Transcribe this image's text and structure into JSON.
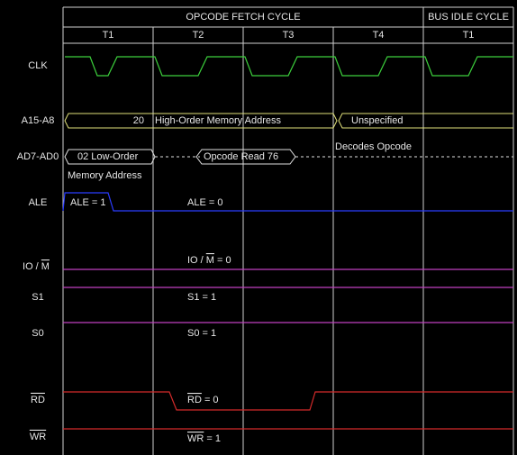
{
  "header": {
    "cycles": [
      "OPCODE FETCH CYCLE",
      "BUS IDLE CYCLE"
    ],
    "states": [
      "T1",
      "T2",
      "T3",
      "T4",
      "T1"
    ]
  },
  "signals": [
    {
      "label": "CLK"
    },
    {
      "label": "A15-A8"
    },
    {
      "label": "AD7-AD0"
    },
    {
      "label": "ALE"
    },
    {
      "label": "IO / ",
      "overline": "M"
    },
    {
      "label": "S1"
    },
    {
      "label": "S0"
    },
    {
      "overline": "RD"
    },
    {
      "overline": "WR"
    }
  ],
  "annotations": {
    "address_high_value": "20",
    "address_high_text": "High-Order Memory Address",
    "address_high_t4": "Unspecified",
    "address_low_line1": "02 Low-Order",
    "address_low_line2": "Memory Address",
    "opcode_read": "Opcode Read 76",
    "decodes": "Decodes Opcode",
    "ale_high": "ALE = 1",
    "ale_low": "ALE = 0",
    "iom": {
      "text": "IO / ",
      "overline": "M",
      "suffix": " = 0"
    },
    "s1": "S1 = 1",
    "s0": "S0 = 1",
    "rd": {
      "overline": "RD",
      "suffix": " = 0"
    },
    "wr": {
      "overline": "WR",
      "suffix": " = 1"
    }
  }
}
